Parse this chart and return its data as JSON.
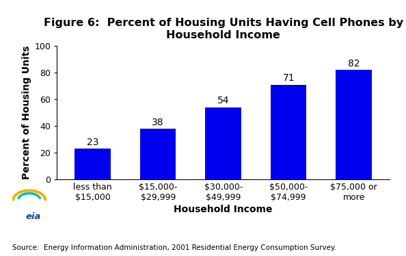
{
  "title": "Figure 6:  Percent of Housing Units Having Cell Phones by\nHousehold Income",
  "categories": [
    "less than\n$15,000",
    "$15,000-\n$29,999",
    "$30,000-\n$49,999",
    "$50,000-\n$74,999",
    "$75,000 or\nmore"
  ],
  "values": [
    23,
    38,
    54,
    71,
    82
  ],
  "bar_color": "#0000ee",
  "xlabel": "Household Income",
  "ylabel": "Percent of Housing Units",
  "ylim": [
    0,
    100
  ],
  "yticks": [
    0,
    20,
    40,
    60,
    80,
    100
  ],
  "source_text": "Source:  Energy Information Administration, 2001 Residential Energy Consumption Survey.",
  "title_fontsize": 11.5,
  "label_fontsize": 10,
  "tick_fontsize": 9,
  "value_label_fontsize": 10,
  "background_color": "#ffffff"
}
